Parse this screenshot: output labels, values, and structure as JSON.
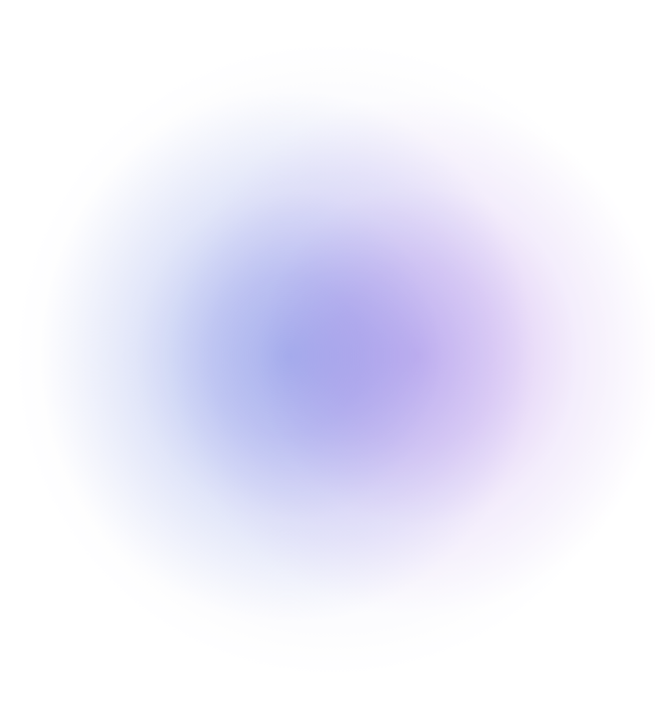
{
  "background": {
    "base_color": "#ffffff",
    "gradient_colors": {
      "blue": "#b4c4f2",
      "purple": "#d6c0f4",
      "halo": "#ececfa"
    }
  }
}
